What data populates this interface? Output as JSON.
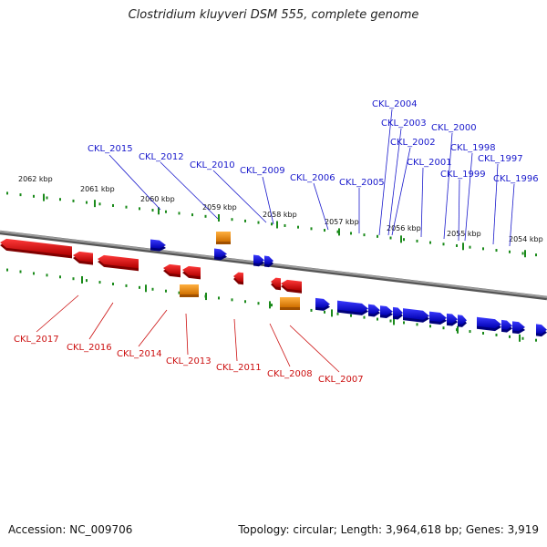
{
  "title": "Clostridium kluyveri DSM 555, complete genome",
  "footer": {
    "accession": "Accession: NC_009706",
    "info": "Topology: circular; Length: 3,964,618 bp; Genes: 3,919"
  },
  "colors": {
    "forward": "#1010e0",
    "reverse": "#e81010",
    "rna": "#f08c00",
    "backbone": "#808080",
    "tick": "#1a8a1a",
    "label_forward": "#1a1acc",
    "label_reverse": "#cc1010"
  },
  "scale_labels": [
    {
      "text": "2062 kbp"
    },
    {
      "text": "2061 kbp"
    },
    {
      "text": "2060 kbp"
    },
    {
      "text": "2059 kbp"
    },
    {
      "text": "2058 kbp"
    },
    {
      "text": "2057 kbp"
    },
    {
      "text": "2056 kbp"
    },
    {
      "text": "2055 kbp"
    },
    {
      "text": "2054 kbp"
    }
  ],
  "forward_genes": [
    {
      "name": "CKL_2015"
    },
    {
      "name": "CKL_2012"
    },
    {
      "name": "CKL_2010"
    },
    {
      "name": "CKL_2009"
    },
    {
      "name": "CKL_2006"
    },
    {
      "name": "CKL_2005"
    },
    {
      "name": "CKL_2004"
    },
    {
      "name": "CKL_2003"
    },
    {
      "name": "CKL_2002"
    },
    {
      "name": "CKL_2001"
    },
    {
      "name": "CKL_2000"
    },
    {
      "name": "CKL_1999"
    },
    {
      "name": "CKL_1998"
    },
    {
      "name": "CKL_1997"
    },
    {
      "name": "CKL_1996"
    }
  ],
  "reverse_genes": [
    {
      "name": "CKL_2017"
    },
    {
      "name": "CKL_2016"
    },
    {
      "name": "CKL_2014"
    },
    {
      "name": "CKL_2013"
    },
    {
      "name": "CKL_2011"
    },
    {
      "name": "CKL_2008"
    },
    {
      "name": "CKL_2007"
    }
  ]
}
